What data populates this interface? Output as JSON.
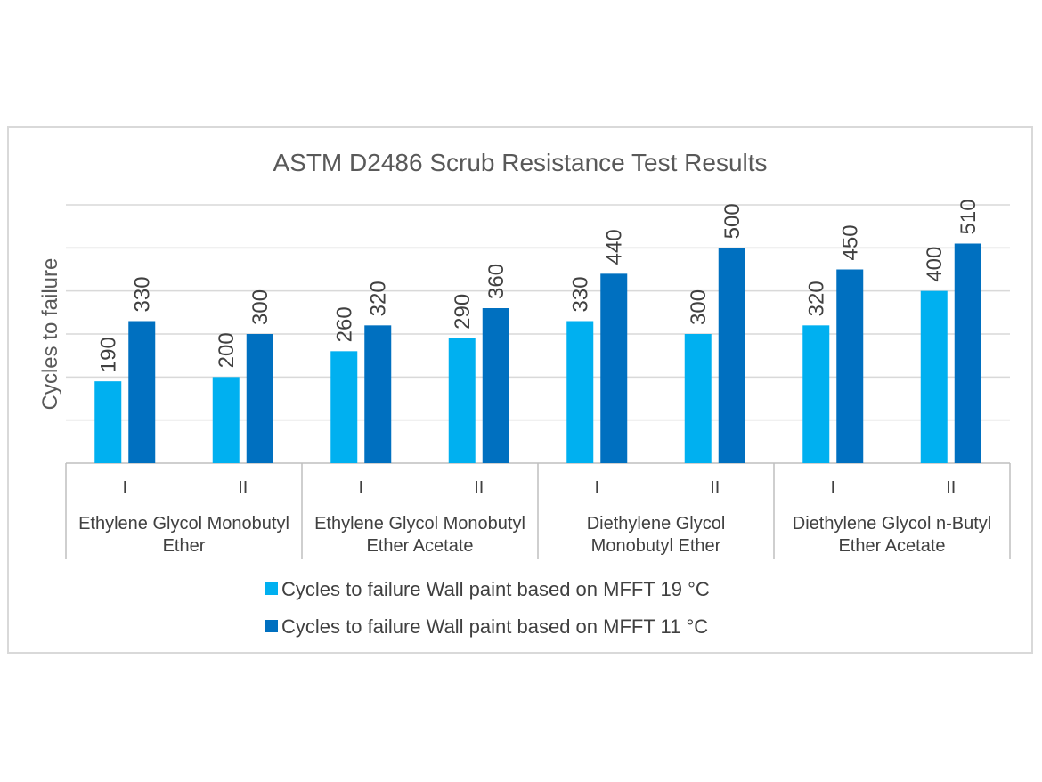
{
  "chart_data": {
    "type": "bar",
    "title": "ASTM D2486 Scrub Resistance Test Results",
    "ylabel": "Cycles to failure",
    "xlabel": "",
    "ylim": [
      0,
      600
    ],
    "y_tick_labels_shown": false,
    "grid": true,
    "groups": [
      {
        "label": "Ethylene Glycol Monobutyl Ether",
        "lines": [
          "Ethylene Glycol Monobutyl",
          "Ether"
        ]
      },
      {
        "label": "Ethylene Glycol Monobutyl Ether Acetate",
        "lines": [
          "Ethylene Glycol Monobutyl",
          "Ether Acetate"
        ]
      },
      {
        "label": "Diethylene Glycol Monobutyl Ether",
        "lines": [
          "Diethylene Glycol",
          "Monobutyl Ether"
        ]
      },
      {
        "label": "Diethylene Glycol n-Butyl Ether Acetate",
        "lines": [
          "Diethylene Glycol n-Butyl",
          "Ether Acetate"
        ]
      }
    ],
    "categories": [
      "I",
      "II",
      "I",
      "II",
      "I",
      "II",
      "I",
      "II"
    ],
    "category_group": [
      0,
      0,
      1,
      1,
      2,
      2,
      3,
      3
    ],
    "series": [
      {
        "name": "Cycles to failure Wall paint based on MFFT 19 °C",
        "color": "#00b0f0",
        "values": [
          190,
          200,
          260,
          290,
          330,
          300,
          320,
          400
        ]
      },
      {
        "name": "Cycles to failure Wall paint based on MFFT 11 °C",
        "color": "#0070c0",
        "values": [
          330,
          300,
          320,
          360,
          440,
          500,
          450,
          510
        ]
      }
    ],
    "legend_position": "bottom",
    "data_labels": true,
    "gridline_color": "#d9d9d9"
  }
}
